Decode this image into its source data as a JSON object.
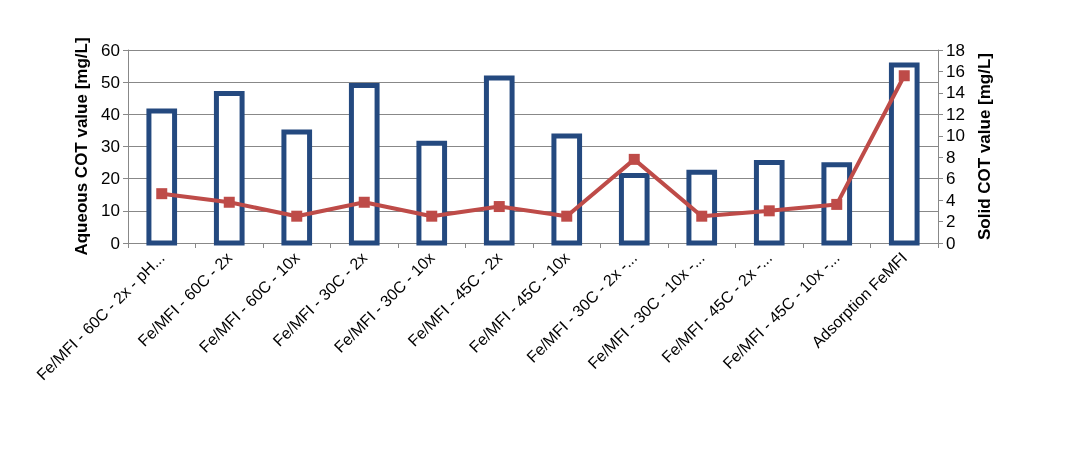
{
  "chart_data": {
    "type": "bar",
    "ylabel": "Aqueous COT value [mg/L]",
    "y2label": "Solid COT value [mg/L]",
    "categories": [
      "Fe/MFI - 60C - 2x - pH...",
      "Fe/MFI - 60C - 2x",
      "Fe/MFI - 60C - 10x",
      "Fe/MFI - 30C - 2x",
      "Fe/MFI - 30C - 10x",
      "Fe/MFI - 45C - 2x",
      "Fe/MFI - 45C - 10x",
      "Fe/MFI - 30C - 2x -...",
      "Fe/MFI - 30C - 10x -...",
      "Fe/MFI - 45C - 2x -...",
      "Fe/MFI - 45C - 10x -...",
      "Adsorption FeMFI"
    ],
    "series": [
      {
        "color": "#24497f",
        "values": [
          41,
          46.5,
          34.5,
          49,
          31,
          51.3,
          33.3,
          21,
          22,
          25,
          24.3,
          55.3
        ]
      },
      {
        "type": "line",
        "axis": "y2",
        "color": "#be4b48",
        "values": [
          4.6,
          3.8,
          2.5,
          3.8,
          2.5,
          3.4,
          2.5,
          7.8,
          2.5,
          3.0,
          3.6,
          15.6
        ]
      }
    ],
    "ylim": [
      0,
      60
    ],
    "yticks": [
      0,
      10,
      20,
      30,
      40,
      50,
      60
    ],
    "y2lim": [
      0,
      18
    ],
    "y2ticks": [
      0,
      2,
      4,
      6,
      8,
      10,
      12,
      14,
      16,
      18
    ],
    "grid": "y",
    "marker": "square",
    "line_style": "solid"
  }
}
